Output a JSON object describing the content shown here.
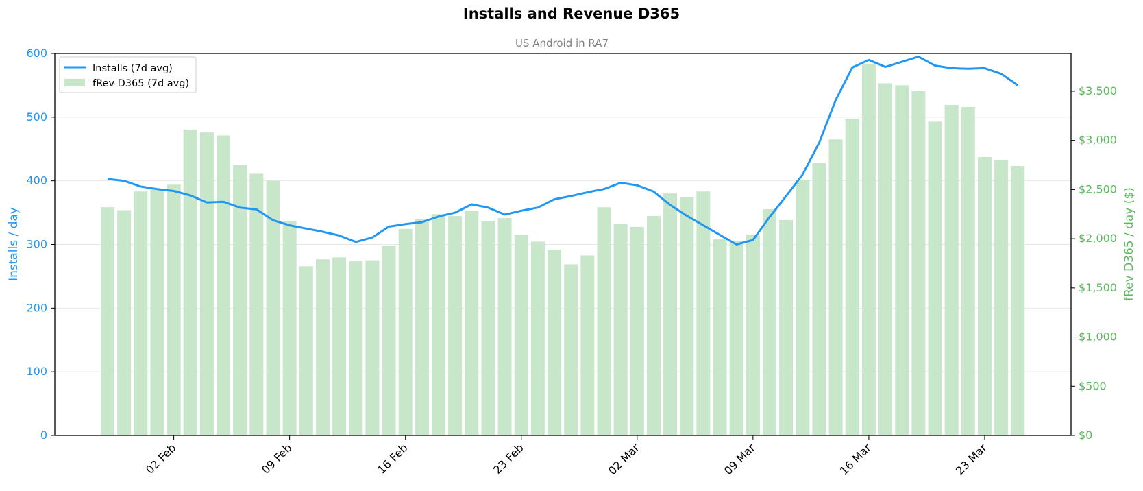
{
  "colors": {
    "installs": "#2196f3",
    "revenue": "#c8e6c9",
    "revenue_axis": "#5cb85c",
    "title": "#000000",
    "subtitle": "#808080",
    "grid": "#e6e6e6"
  },
  "chart_data": {
    "type": "bar+line",
    "title": "Installs and Revenue D365",
    "subtitle": "US Android in RA7",
    "ylabel_left": "Installs / day",
    "ylabel_right": "fRev D365 / day ($)",
    "ylim_left": [
      0,
      600
    ],
    "ylim_right": [
      0,
      3883
    ],
    "yticks_left": [
      0,
      100,
      200,
      300,
      400,
      500,
      600
    ],
    "yticks_right": [
      0,
      500,
      1000,
      1500,
      2000,
      2500,
      3000,
      3500
    ],
    "yticks_right_labels": [
      "$0",
      "$500",
      "$1,000",
      "$1,500",
      "$2,000",
      "$2,500",
      "$3,000",
      "$3,500"
    ],
    "grid": true,
    "legend_position": "top-left",
    "x_start_date": "2025-01-29",
    "xtick_labels": [
      "02 Feb",
      "09 Feb",
      "16 Feb",
      "23 Feb",
      "02 Mar",
      "09 Mar",
      "16 Mar",
      "23 Mar"
    ],
    "xtick_day_index": [
      4,
      11,
      18,
      25,
      32,
      39,
      46,
      53
    ],
    "series": [
      {
        "name": "Installs (7d avg)",
        "kind": "line",
        "axis": "left",
        "values": [
          403,
          400,
          391,
          387,
          384,
          377,
          366,
          367,
          358,
          355,
          338,
          330,
          325,
          320,
          314,
          304,
          311,
          328,
          332,
          335,
          344,
          350,
          363,
          358,
          347,
          353,
          358,
          371,
          376,
          382,
          387,
          397,
          393,
          383,
          362,
          345,
          330,
          315,
          300,
          307,
          343,
          376,
          410,
          460,
          527,
          578,
          590,
          579,
          587,
          595,
          581,
          577,
          576,
          577,
          568,
          550
        ]
      },
      {
        "name": "fRev D365 (7d avg)",
        "kind": "bar",
        "axis": "right",
        "values": [
          2320,
          2290,
          2480,
          2510,
          2550,
          3110,
          3080,
          3050,
          2750,
          2660,
          2590,
          2180,
          1720,
          1790,
          1810,
          1770,
          1780,
          1930,
          2100,
          2200,
          2250,
          2230,
          2280,
          2180,
          2210,
          2040,
          1970,
          1890,
          1740,
          1830,
          2320,
          2150,
          2120,
          2230,
          2460,
          2420,
          2480,
          2000,
          1980,
          2040,
          2300,
          2190,
          2600,
          2770,
          3010,
          3220,
          3780,
          3580,
          3560,
          3500,
          3190,
          3360,
          3340,
          2830,
          2800,
          2740
        ]
      }
    ]
  }
}
